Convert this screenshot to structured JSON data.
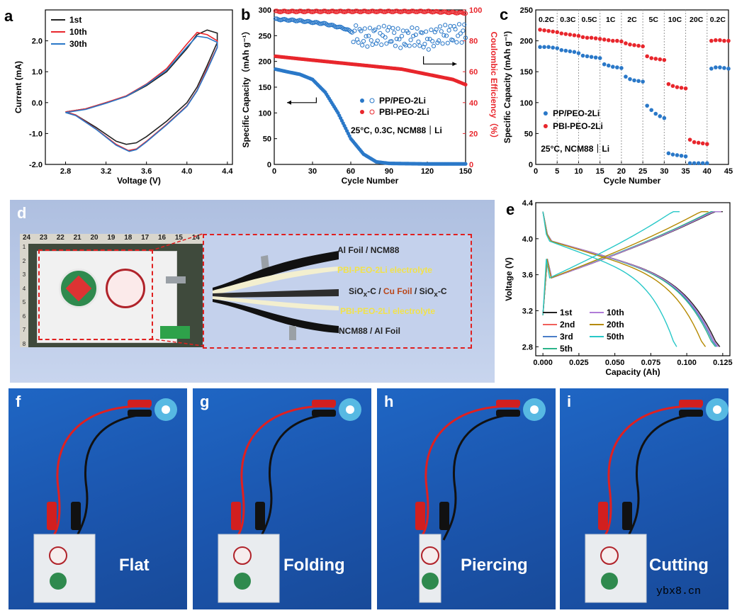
{
  "panels": {
    "a": {
      "letter": "a",
      "chart_data": {
        "type": "line",
        "xlabel": "Voltage (V)",
        "ylabel": "Current (mA)",
        "xlim": [
          2.6,
          4.45
        ],
        "ylim": [
          -2.0,
          3.0
        ],
        "xticks": [
          "2.8",
          "3.2",
          "3.6",
          "4.0",
          "4.4"
        ],
        "yticks": [
          "-2.0",
          "-1.0",
          "0.0",
          "1.0",
          "2.0"
        ],
        "legend": "top-left",
        "series": [
          {
            "name": "1st",
            "color": "#222222",
            "upper": [
              [
                2.8,
                -0.3
              ],
              [
                3.0,
                -0.2
              ],
              [
                3.2,
                0.0
              ],
              [
                3.4,
                0.2
              ],
              [
                3.6,
                0.55
              ],
              [
                3.8,
                1.0
              ],
              [
                4.0,
                1.75
              ],
              [
                4.1,
                2.2
              ],
              [
                4.2,
                2.35
              ],
              [
                4.3,
                2.25
              ]
            ],
            "lower": [
              [
                4.3,
                1.95
              ],
              [
                4.2,
                1.2
              ],
              [
                4.1,
                0.5
              ],
              [
                4.0,
                0.0
              ],
              [
                3.8,
                -0.6
              ],
              [
                3.6,
                -1.1
              ],
              [
                3.5,
                -1.3
              ],
              [
                3.4,
                -1.35
              ],
              [
                3.3,
                -1.25
              ],
              [
                3.1,
                -0.8
              ],
              [
                2.9,
                -0.4
              ],
              [
                2.8,
                -0.3
              ]
            ]
          },
          {
            "name": "10th",
            "color": "#e8262c",
            "upper": [
              [
                2.8,
                -0.3
              ],
              [
                3.0,
                -0.2
              ],
              [
                3.2,
                0.0
              ],
              [
                3.4,
                0.22
              ],
              [
                3.6,
                0.6
              ],
              [
                3.8,
                1.1
              ],
              [
                4.0,
                1.9
              ],
              [
                4.1,
                2.27
              ],
              [
                4.2,
                2.2
              ],
              [
                4.3,
                2.0
              ]
            ],
            "lower": [
              [
                4.3,
                1.8
              ],
              [
                4.2,
                1.1
              ],
              [
                4.1,
                0.4
              ],
              [
                4.0,
                -0.1
              ],
              [
                3.8,
                -0.7
              ],
              [
                3.6,
                -1.25
              ],
              [
                3.5,
                -1.5
              ],
              [
                3.42,
                -1.55
              ],
              [
                3.3,
                -1.35
              ],
              [
                3.1,
                -0.85
              ],
              [
                2.9,
                -0.4
              ],
              [
                2.8,
                -0.3
              ]
            ]
          },
          {
            "name": "30th",
            "color": "#2a78c8",
            "upper": [
              [
                2.8,
                -0.32
              ],
              [
                3.0,
                -0.22
              ],
              [
                3.2,
                -0.02
              ],
              [
                3.4,
                0.2
              ],
              [
                3.6,
                0.58
              ],
              [
                3.8,
                1.05
              ],
              [
                4.0,
                1.8
              ],
              [
                4.1,
                2.15
              ],
              [
                4.2,
                2.1
              ],
              [
                4.3,
                1.95
              ]
            ],
            "lower": [
              [
                4.3,
                1.78
              ],
              [
                4.2,
                1.05
              ],
              [
                4.1,
                0.38
              ],
              [
                4.0,
                -0.12
              ],
              [
                3.8,
                -0.72
              ],
              [
                3.6,
                -1.27
              ],
              [
                3.5,
                -1.52
              ],
              [
                3.43,
                -1.58
              ],
              [
                3.3,
                -1.38
              ],
              [
                3.1,
                -0.86
              ],
              [
                2.9,
                -0.42
              ],
              [
                2.8,
                -0.32
              ]
            ]
          }
        ]
      }
    },
    "b": {
      "letter": "b",
      "chart_data": {
        "type": "scatter",
        "xlabel": "Cycle Number",
        "ylabel": "Specific Capacity（mAh g⁻¹）",
        "y2label": "Coulombic Efficiency（%）",
        "xlim": [
          0,
          150
        ],
        "ylim": [
          0,
          300
        ],
        "y2lim": [
          0,
          100
        ],
        "xticks": [
          "0",
          "30",
          "60",
          "90",
          "120",
          "150"
        ],
        "yticks": [
          "0",
          "50",
          "100",
          "150",
          "200",
          "250",
          "300"
        ],
        "y2ticks": [
          "0",
          "20",
          "40",
          "60",
          "80",
          "100"
        ],
        "legend": [
          "PP/PEO-2Li",
          "PBI-PEO-2Li"
        ],
        "annotation": "25°C, 0.3C, NCM88｜Li",
        "series": [
          {
            "name": "PP/PEO-2Li",
            "color": "#2a78c8",
            "kind": "capacity",
            "points": [
              [
                1,
                185
              ],
              [
                10,
                180
              ],
              [
                20,
                175
              ],
              [
                30,
                165
              ],
              [
                40,
                140
              ],
              [
                50,
                100
              ],
              [
                60,
                50
              ],
              [
                70,
                20
              ],
              [
                80,
                5
              ],
              [
                90,
                2
              ],
              [
                120,
                1
              ],
              [
                150,
                1
              ]
            ]
          },
          {
            "name": "PBI-PEO-2Li",
            "color": "#e8262c",
            "kind": "capacity",
            "points": [
              [
                1,
                210
              ],
              [
                20,
                205
              ],
              [
                40,
                200
              ],
              [
                60,
                195
              ],
              [
                80,
                190
              ],
              [
                100,
                185
              ],
              [
                120,
                175
              ],
              [
                140,
                165
              ],
              [
                150,
                155
              ]
            ]
          },
          {
            "name": "PP/PEO-2Li",
            "color": "#2a78c8",
            "kind": "efficiency",
            "points": [
              [
                1,
                94
              ],
              [
                20,
                93
              ],
              [
                40,
                91
              ],
              [
                55,
                88
              ],
              [
                70,
                82
              ],
              [
                90,
                84
              ],
              [
                100,
                81
              ],
              [
                110,
                83
              ],
              [
                120,
                80
              ],
              [
                130,
                84
              ],
              [
                150,
                85
              ]
            ]
          },
          {
            "name": "PBI-PEO-2Li",
            "color": "#e8262c",
            "kind": "efficiency",
            "points": [
              [
                1,
                99
              ],
              [
                30,
                99
              ],
              [
                60,
                99
              ],
              [
                90,
                99
              ],
              [
                120,
                99
              ],
              [
                150,
                98
              ]
            ]
          }
        ]
      }
    },
    "c": {
      "letter": "c",
      "chart_data": {
        "type": "scatter",
        "xlabel": "Cycle Number",
        "ylabel": "Specific Capacity (mAh g⁻¹)",
        "xlim": [
          0,
          45
        ],
        "ylim": [
          0,
          250
        ],
        "xticks": [
          "0",
          "5",
          "10",
          "15",
          "20",
          "25",
          "30",
          "35",
          "40",
          "45"
        ],
        "yticks": [
          "0",
          "50",
          "100",
          "150",
          "200",
          "250"
        ],
        "rates": [
          "0.2C",
          "0.3C",
          "0.5C",
          "1C",
          "2C",
          "5C",
          "10C",
          "20C",
          "0.2C"
        ],
        "annotation": "25°C,  NCM88｜Li",
        "series": [
          {
            "name": "PP/PEO-2Li",
            "color": "#2a78c8",
            "values": [
              190,
              190,
              190,
              189,
              188,
              185,
              184,
              183,
              182,
              180,
              176,
              175,
              174,
              173,
              172,
              162,
              160,
              158,
              157,
              156,
              142,
              138,
              136,
              135,
              134,
              95,
              88,
              82,
              78,
              75,
              18,
              16,
              15,
              14,
              13,
              2,
              2,
              2,
              2,
              2,
              155,
              157,
              157,
              156,
              155
            ]
          },
          {
            "name": "PBI-PEO-2Li",
            "color": "#e8262c",
            "values": [
              218,
              217,
              216,
              215,
              214,
              212,
              211,
              210,
              209,
              208,
              206,
              205,
              205,
              204,
              203,
              202,
              201,
              200,
              200,
              199,
              196,
              194,
              193,
              192,
              191,
              175,
              172,
              171,
              170,
              169,
              130,
              127,
              125,
              124,
              123,
              40,
              36,
              35,
              34,
              33,
              200,
              201,
              201,
              200,
              200
            ]
          }
        ]
      }
    },
    "d": {
      "letter": "d",
      "ruler": [
        "24",
        "23",
        "22",
        "21",
        "20",
        "19",
        "18",
        "17",
        "16",
        "15",
        "14"
      ],
      "ruler_side": [
        "1",
        "2",
        "3",
        "4",
        "5",
        "6",
        "7",
        "8"
      ],
      "layers": {
        "l1_a": "Al Foil",
        "l1_sep": " / ",
        "l1_b": "NCM88",
        "l2": "PBI-PEO-2Li electrolyte",
        "l3_a": "SiO",
        "l3_a_sub": "x",
        "l3_b": "-C / ",
        "l3_cu": "Cu Foil",
        "l3_c": " / SiO",
        "l3_c_sub": "x",
        "l3_d": "-C",
        "l4": "PBI-PEO-2Li electrolyte",
        "l5_a": "NCM88",
        "l5_sep": " / ",
        "l5_b": "Al Foil"
      }
    },
    "e": {
      "letter": "e",
      "chart_data": {
        "type": "line",
        "xlabel": "Capacity (Ah)",
        "ylabel": "Voltage (V)",
        "xlim": [
          -0.005,
          0.13
        ],
        "ylim": [
          2.7,
          4.4
        ],
        "xticks": [
          "0.000",
          "0.025",
          "0.050",
          "0.075",
          "0.100",
          "0.125"
        ],
        "yticks": [
          "2.8",
          "3.2",
          "3.6",
          "4.0",
          "4.4"
        ],
        "series": [
          {
            "name": "1st",
            "color": "#222222",
            "capacity": 0.123
          },
          {
            "name": "2nd",
            "color": "#f0605a",
            "capacity": 0.122
          },
          {
            "name": "3rd",
            "color": "#4a7ec8",
            "capacity": 0.121
          },
          {
            "name": "5th",
            "color": "#2bb38a",
            "capacity": 0.12
          },
          {
            "name": "10th",
            "color": "#b07cd8",
            "capacity": 0.122
          },
          {
            "name": "20th",
            "color": "#b58900",
            "capacity": 0.113
          },
          {
            "name": "50th",
            "color": "#28c8c8",
            "capacity": 0.093
          }
        ]
      }
    },
    "photos": [
      {
        "letter": "f",
        "caption": "Flat"
      },
      {
        "letter": "g",
        "caption": "Folding"
      },
      {
        "letter": "h",
        "caption": "Piercing"
      },
      {
        "letter": "i",
        "caption": "Cutting"
      }
    ],
    "watermark": "ybx8.cn"
  }
}
